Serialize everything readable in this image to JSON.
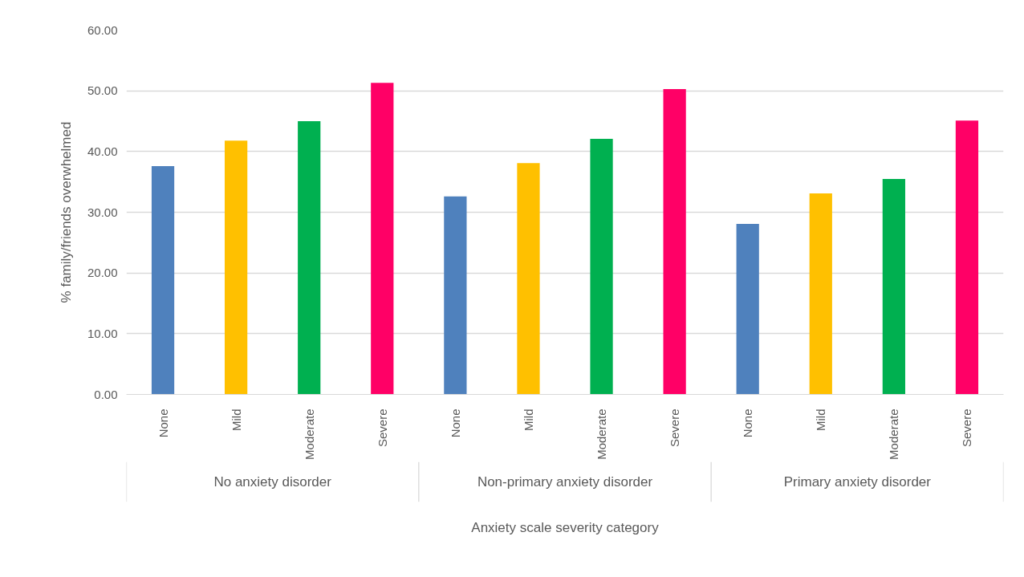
{
  "chart_data": {
    "type": "bar",
    "xlabel": "Anxiety scale severity category",
    "ylabel": "% family/friends overwhelmed",
    "categories": [
      "None",
      "Mild",
      "Moderate",
      "Severe",
      "None",
      "Mild",
      "Moderate",
      "Severe",
      "None",
      "Mild",
      "Moderate",
      "Severe"
    ],
    "values": [
      37.6,
      41.8,
      45.0,
      51.3,
      32.6,
      38.1,
      42.1,
      50.3,
      28.1,
      33.1,
      35.5,
      45.1
    ],
    "colors": [
      "#4f81bd",
      "#ffc000",
      "#00b050",
      "#ff0066",
      "#4f81bd",
      "#ffc000",
      "#00b050",
      "#ff0066",
      "#4f81bd",
      "#ffc000",
      "#00b050",
      "#ff0066"
    ],
    "annotations": [
      "No anxiety disorder",
      "Non-primary anxiety disorder",
      "Primary anxiety disorder"
    ],
    "ylim": [
      0,
      60
    ],
    "yticks": [
      {
        "value": 0,
        "label": "0.00"
      },
      {
        "value": 10,
        "label": "10.00"
      },
      {
        "value": 20,
        "label": "20.00"
      },
      {
        "value": 30,
        "label": "30.00"
      },
      {
        "value": 40,
        "label": "40.00"
      },
      {
        "value": 50,
        "label": "50.00"
      },
      {
        "value": 60,
        "label": "60.00"
      }
    ],
    "grid": "y"
  }
}
